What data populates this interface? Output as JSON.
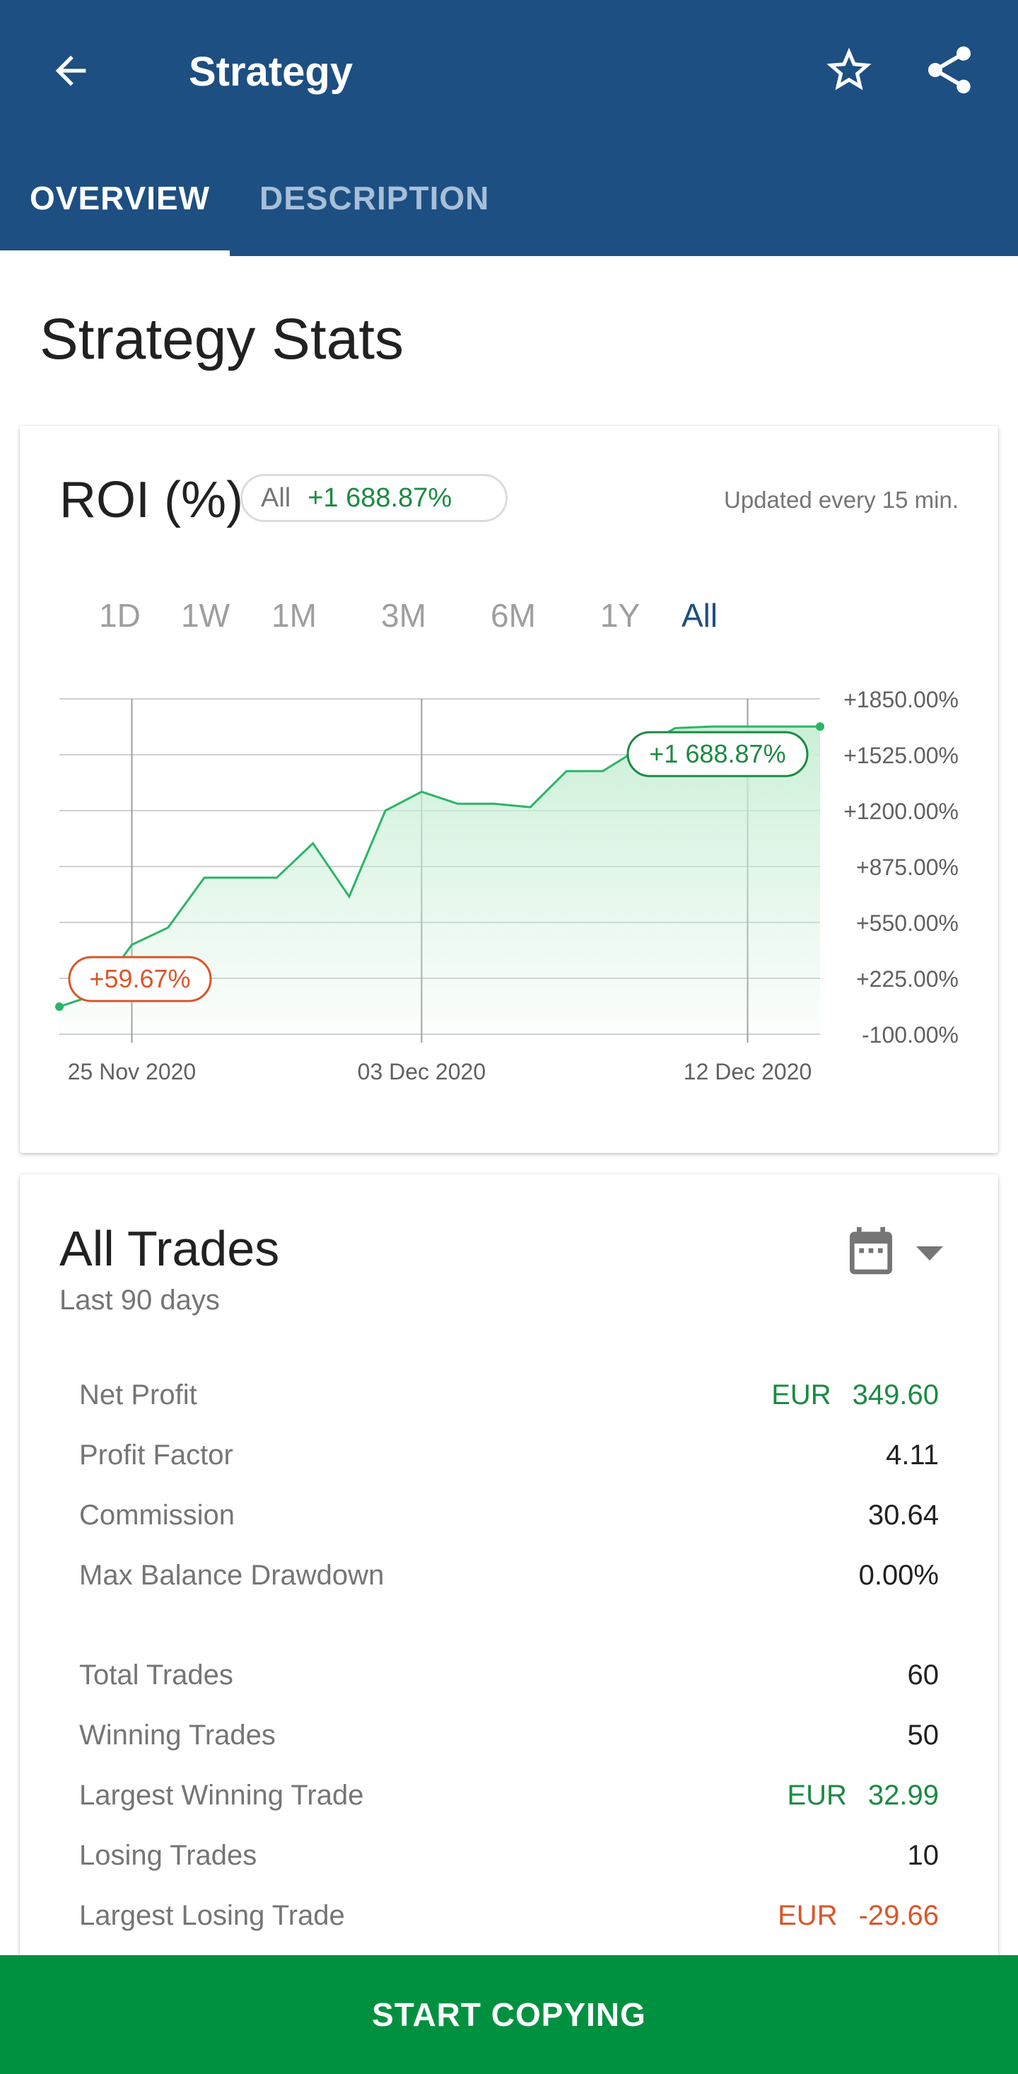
{
  "app_bar": {
    "title": "Strategy",
    "tabs": [
      {
        "label": "OVERVIEW",
        "active": true
      },
      {
        "label": "DESCRIPTION",
        "active": false
      }
    ]
  },
  "section_title": "Strategy Stats",
  "roi_card": {
    "title": "ROI (%)",
    "pill_label": "All",
    "pill_value": "+1 688.87%",
    "updated_text": "Updated every 15 min.",
    "ranges": [
      "1D",
      "1W",
      "1M",
      "3M",
      "6M",
      "1Y",
      "All"
    ],
    "selected_range": "All"
  },
  "chart_data": {
    "type": "area",
    "title": "",
    "xlabel": "",
    "ylabel": "",
    "x_tick_labels": [
      "25 Nov 2020",
      "03 Dec 2020",
      "12 Dec 2020"
    ],
    "y_tick_labels": [
      "+1850.00%",
      "+1525.00%",
      "+1200.00%",
      "+875.00%",
      "+550.00%",
      "+225.00%",
      "-100.00%"
    ],
    "ylim": [
      -100,
      1850
    ],
    "grid": true,
    "start_label": "+59.67%",
    "end_label": "+1 688.87%",
    "series": [
      {
        "x": [
          "2020-11-23",
          "2020-11-24",
          "2020-11-25",
          "2020-11-26",
          "2020-11-27",
          "2020-11-28",
          "2020-11-29",
          "2020-11-30",
          "2020-12-01",
          "2020-12-02",
          "2020-12-03",
          "2020-12-04",
          "2020-12-05",
          "2020-12-06",
          "2020-12-07",
          "2020-12-08",
          "2020-12-09",
          "2020-12-10",
          "2020-12-11",
          "2020-12-12",
          "2020-12-13",
          "2020-12-14"
        ],
        "values": [
          60,
          130,
          420,
          520,
          810,
          810,
          810,
          1010,
          700,
          1200,
          1310,
          1240,
          1240,
          1220,
          1430,
          1430,
          1560,
          1680,
          1689,
          1689,
          1689,
          1689
        ]
      }
    ],
    "colors": {
      "line": "#2bb566",
      "fill": "#c9efd6",
      "start_label": "#d9562a",
      "end_label": "#1b8a42"
    }
  },
  "trades_card": {
    "title": "All Trades",
    "subtitle": "Last 90 days",
    "stats_a": [
      {
        "label": "Net Profit",
        "currency": "EUR",
        "value": "349.60",
        "tone": "green"
      },
      {
        "label": "Profit Factor",
        "currency": "",
        "value": "4.11",
        "tone": "default"
      },
      {
        "label": "Commission",
        "currency": "",
        "value": "30.64",
        "tone": "default"
      },
      {
        "label": "Max Balance Drawdown",
        "currency": "",
        "value": "0.00%",
        "tone": "default"
      }
    ],
    "stats_b": [
      {
        "label": "Total Trades",
        "currency": "",
        "value": "60",
        "tone": "default"
      },
      {
        "label": "Winning Trades",
        "currency": "",
        "value": "50",
        "tone": "default"
      },
      {
        "label": "Largest Winning Trade",
        "currency": "EUR",
        "value": "32.99",
        "tone": "green"
      },
      {
        "label": "Losing Trades",
        "currency": "",
        "value": "10",
        "tone": "default"
      },
      {
        "label": "Largest Losing Trade",
        "currency": "EUR",
        "value": "-29.66",
        "tone": "red"
      }
    ]
  },
  "cta_label": "START COPYING",
  "icons": [
    "arrow-back-icon",
    "star-outline-icon",
    "share-icon",
    "calendar-icon",
    "chevron-down-icon"
  ],
  "colors": {
    "primary": "#1d4f82",
    "cta": "#009140",
    "positive": "#1b8a42",
    "negative": "#d9562a"
  }
}
